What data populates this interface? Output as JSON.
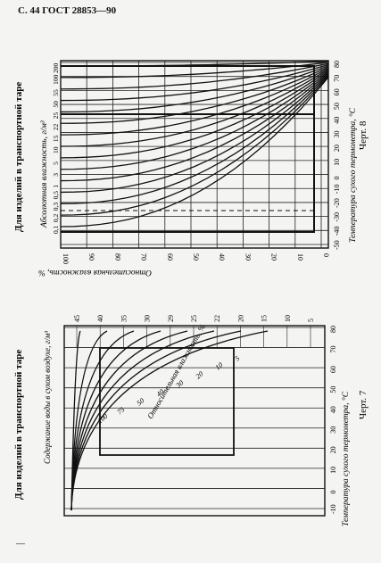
{
  "header": "С. 44 ГОСТ 28853—90",
  "top_panel": {
    "side_title": "Для изделий в транспортной таре",
    "yaxis_title": "Абсолютная влажность, г/м³",
    "yaxis_labels": [
      "200",
      "100",
      "55",
      "50",
      "25",
      "22",
      "15",
      "10",
      "5",
      "3",
      "1",
      "0,5",
      "0,3",
      "0,2",
      "0,1"
    ],
    "xaxis_title": "Температура сухого термометра, °С",
    "xaxis_labels": [
      "-50",
      "-40",
      "-30",
      "-20",
      "-10",
      "0",
      "10",
      "20",
      "30",
      "40",
      "50",
      "60",
      "70",
      "80"
    ],
    "rh_title": "Относительная влажность, %",
    "rh_labels": [
      "100",
      "90",
      "80",
      "70",
      "60",
      "50",
      "40",
      "30",
      "20",
      "10",
      "0"
    ],
    "caption": "Черт. 8"
  },
  "bottom_panel": {
    "side_title": "Для изделий в транспортной таре",
    "top_title": "Содержание воды в сухом воздухе, г/м³",
    "top_labels": [
      "45",
      "40",
      "35",
      "30",
      "29",
      "25",
      "22",
      "20",
      "15",
      "10",
      "5"
    ],
    "xaxis_title": "Температура сухого термометра, °С",
    "xaxis_labels": [
      "-10",
      "0",
      "10",
      "20",
      "30",
      "40",
      "50",
      "60",
      "70",
      "80"
    ],
    "rh_title": "Относительная влажность, %",
    "curve_labels": [
      "100",
      "75",
      "50",
      "40",
      "30",
      "20",
      "10",
      "5"
    ],
    "caption": "Черт. 7",
    "corner_mark": "—"
  }
}
